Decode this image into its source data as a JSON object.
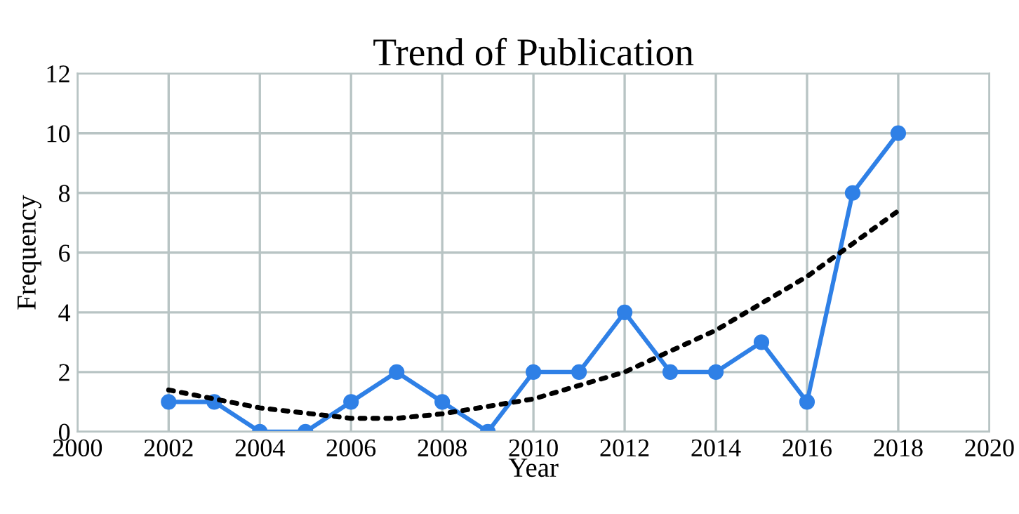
{
  "chart_data": {
    "type": "line",
    "title": "Trend of Publication",
    "xlabel": "Year",
    "ylabel": "Frequency",
    "xlim": [
      2000,
      2020
    ],
    "xticks": [
      2000,
      2002,
      2004,
      2006,
      2008,
      2010,
      2012,
      2014,
      2016,
      2018,
      2020
    ],
    "ylim": [
      0,
      12
    ],
    "yticks": [
      0,
      2,
      4,
      6,
      8,
      10,
      12
    ],
    "grid": true,
    "series": [
      {
        "color": "#2f80e6",
        "marker": "circle",
        "line_style": "solid",
        "x": [
          2002,
          2003,
          2004,
          2005,
          2006,
          2007,
          2008,
          2009,
          2010,
          2011,
          2012,
          2013,
          2014,
          2015,
          2016,
          2017,
          2018
        ],
        "values": [
          1,
          1,
          0,
          0,
          1,
          2,
          1,
          0,
          2,
          2,
          4,
          2,
          2,
          3,
          1,
          8,
          10
        ]
      },
      {
        "color": "#000000",
        "marker": "none",
        "line_style": "dotted",
        "x": [
          2002,
          2004,
          2006,
          2007,
          2008,
          2010,
          2012,
          2014,
          2016,
          2018
        ],
        "values": [
          1.4,
          0.8,
          0.45,
          0.45,
          0.6,
          1.1,
          2.0,
          3.4,
          5.2,
          7.4
        ]
      }
    ]
  }
}
